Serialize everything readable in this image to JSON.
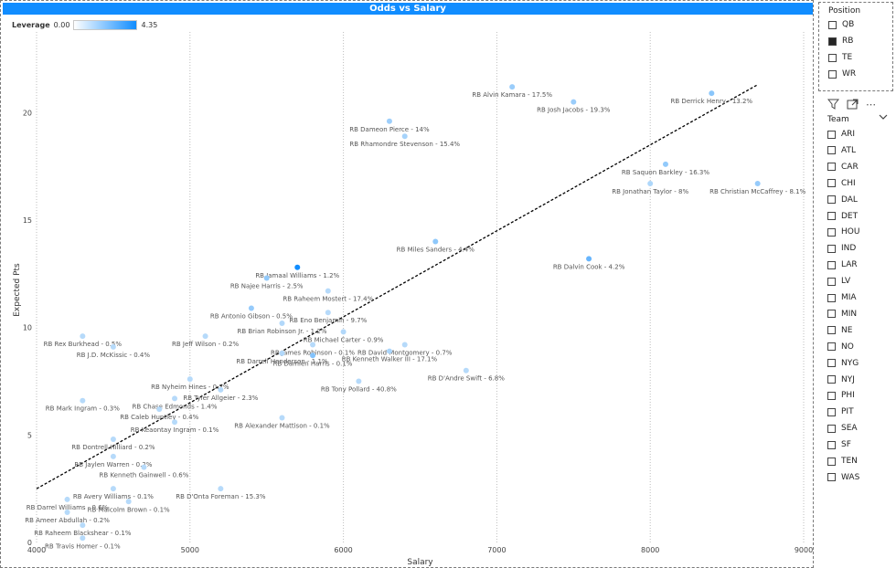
{
  "chart_data": {
    "type": "scatter",
    "title": "Odds vs Salary",
    "xlabel": "Salary",
    "ylabel": "Expected Pts",
    "xlim": [
      4000,
      9000
    ],
    "ylim": [
      0,
      23.5
    ],
    "x_ticks": [
      4000,
      5000,
      6000,
      7000,
      8000,
      9000
    ],
    "y_ticks": [
      0,
      5,
      10,
      15,
      20
    ],
    "grid": "vertical-dotted",
    "legend": {
      "title": "Leverage",
      "min_label": "0.00",
      "max_label": "4.35",
      "position": "top-left"
    },
    "trendline": {
      "x": [
        4000,
        8700
      ],
      "y": [
        2.5,
        21.3
      ],
      "style": "dashed"
    },
    "colors": {
      "min": "#ffffff",
      "max": "#118dff",
      "text": "#555555",
      "header": "#118dff"
    },
    "points": [
      {
        "label": "RB Alvin Kamara - 17.5%",
        "x": 7100,
        "y": 21.2,
        "leverage": 0.9
      },
      {
        "label": "RB Derrick Henry - 13.2%",
        "x": 8400,
        "y": 20.9,
        "leverage": 1.3
      },
      {
        "label": "RB Josh Jacobs - 19.3%",
        "x": 7500,
        "y": 20.5,
        "leverage": 0.9
      },
      {
        "label": "RB Dameon Pierce - 14%",
        "x": 6300,
        "y": 19.6,
        "leverage": 0.8
      },
      {
        "label": "RB Rhamondre Stevenson - 15.4%",
        "x": 6400,
        "y": 18.9,
        "leverage": 0.6
      },
      {
        "label": "RB Saquon Barkley - 16.3%",
        "x": 8100,
        "y": 17.6,
        "leverage": 1.1
      },
      {
        "label": "RB Jonathan Taylor - 8%",
        "x": 8000,
        "y": 16.7,
        "leverage": 0.4
      },
      {
        "label": "RB Christian McCaffrey - 8.1%",
        "x": 8700,
        "y": 16.7,
        "leverage": 1.0
      },
      {
        "label": "RB Miles Sanders - 4.4%",
        "x": 6600,
        "y": 14.0,
        "leverage": 1.2
      },
      {
        "label": "RB Dalvin Cook - 4.2%",
        "x": 7600,
        "y": 13.2,
        "leverage": 2.2
      },
      {
        "label": "RB Jamaal Williams - 1.2%",
        "x": 5700,
        "y": 12.8,
        "leverage": 4.35
      },
      {
        "label": "RB Najee Harris - 2.5%",
        "x": 5500,
        "y": 12.3,
        "leverage": 1.1
      },
      {
        "label": "RB Raheem Mostert - 17.4%",
        "x": 5900,
        "y": 11.7,
        "leverage": 0.2
      },
      {
        "label": "RB Antonio Gibson - 0.5%",
        "x": 5400,
        "y": 10.9,
        "leverage": 1.0
      },
      {
        "label": "RB Eno Benjamin - 9.7%",
        "x": 5900,
        "y": 10.7,
        "leverage": 0.2
      },
      {
        "label": "RB Brian Robinson Jr. - 1.2%",
        "x": 5600,
        "y": 10.2,
        "leverage": 0.3
      },
      {
        "label": "RB Michael Carter - 0.9%",
        "x": 6000,
        "y": 9.8,
        "leverage": 0.3
      },
      {
        "label": "RB Rex Burkhead - 0.5%",
        "x": 4300,
        "y": 9.6,
        "leverage": 0.2
      },
      {
        "label": "RB Jeff Wilson - 0.2%",
        "x": 5100,
        "y": 9.6,
        "leverage": 0.2
      },
      {
        "label": "RB James Robinson - 0.1%",
        "x": 5800,
        "y": 9.2,
        "leverage": 0.2
      },
      {
        "label": "RB David Montgomery - 0.7%",
        "x": 6400,
        "y": 9.2,
        "leverage": 0.2
      },
      {
        "label": "RB J.D. McKissic - 0.4%",
        "x": 4500,
        "y": 9.1,
        "leverage": 0.2
      },
      {
        "label": "RB Darrell Henderson - 1.1%",
        "x": 5600,
        "y": 8.8,
        "leverage": 0.3
      },
      {
        "label": "RB Kenneth Walker III - 17.1%",
        "x": 6300,
        "y": 8.9,
        "leverage": 0.5
      },
      {
        "label": "RB Damien Harris - 0.1%",
        "x": 5800,
        "y": 8.7,
        "leverage": 1.5
      },
      {
        "label": "RB D'Andre Swift - 6.8%",
        "x": 6800,
        "y": 8.0,
        "leverage": 0.2
      },
      {
        "label": "RB Nyheim Hines - 0.2%",
        "x": 5000,
        "y": 7.6,
        "leverage": 0.2
      },
      {
        "label": "RB Tony Pollard - 40.8%",
        "x": 6100,
        "y": 7.5,
        "leverage": 0.2
      },
      {
        "label": "RB Tyler Allgeier - 2.3%",
        "x": 5200,
        "y": 7.1,
        "leverage": 0.2
      },
      {
        "label": "RB Chase Edmonds - 1.4%",
        "x": 4900,
        "y": 6.7,
        "leverage": 0.2
      },
      {
        "label": "RB Mark Ingram - 0.3%",
        "x": 4300,
        "y": 6.6,
        "leverage": 0.2
      },
      {
        "label": "RB Caleb Huntley - 0.4%",
        "x": 4800,
        "y": 6.2,
        "leverage": 0.2
      },
      {
        "label": "RB Alexander Mattison - 0.1%",
        "x": 5600,
        "y": 5.8,
        "leverage": 0.2
      },
      {
        "label": "RB Keaontay Ingram - 0.1%",
        "x": 4900,
        "y": 5.6,
        "leverage": 0.2
      },
      {
        "label": "RB Dontrell Hilliard - 0.2%",
        "x": 4500,
        "y": 4.8,
        "leverage": 0.2
      },
      {
        "label": "RB Jaylen Warren - 0.2%",
        "x": 4500,
        "y": 4.0,
        "leverage": 0.2
      },
      {
        "label": "RB Kenneth Gainwell - 0.6%",
        "x": 4700,
        "y": 3.5,
        "leverage": 0.2
      },
      {
        "label": "RB Avery Williams - 0.1%",
        "x": 4500,
        "y": 2.5,
        "leverage": 0.2
      },
      {
        "label": "RB D'Onta Foreman - 15.3%",
        "x": 5200,
        "y": 2.5,
        "leverage": 0.2
      },
      {
        "label": "RB Darrel Williams - 0.6%",
        "x": 4200,
        "y": 2.0,
        "leverage": 0.2
      },
      {
        "label": "RB Malcolm Brown - 0.1%",
        "x": 4600,
        "y": 1.9,
        "leverage": 0.2
      },
      {
        "label": "RB Ameer Abdullah - 0.2%",
        "x": 4200,
        "y": 1.4,
        "leverage": 0.2
      },
      {
        "label": "RB Raheem Blackshear - 0.1%",
        "x": 4300,
        "y": 0.8,
        "leverage": 0.2
      },
      {
        "label": "RB Travis Homer - 0.1%",
        "x": 4300,
        "y": 0.2,
        "leverage": 0.2
      }
    ]
  },
  "position_slicer": {
    "title": "Position",
    "items": [
      {
        "label": "QB",
        "checked": false
      },
      {
        "label": "RB",
        "checked": true
      },
      {
        "label": "TE",
        "checked": false
      },
      {
        "label": "WR",
        "checked": false
      }
    ]
  },
  "toolbar": {
    "filter_icon": "filter-icon",
    "focus_icon": "focus-mode-icon",
    "more_icon": "more-options-icon",
    "more_glyph": "⋯"
  },
  "team_slicer": {
    "title": "Team",
    "items": [
      "ARI",
      "ATL",
      "CAR",
      "CHI",
      "DAL",
      "DET",
      "HOU",
      "IND",
      "LAR",
      "LV",
      "MIA",
      "MIN",
      "NE",
      "NO",
      "NYG",
      "NYJ",
      "PHI",
      "PIT",
      "SEA",
      "SF",
      "TEN",
      "WAS"
    ]
  }
}
